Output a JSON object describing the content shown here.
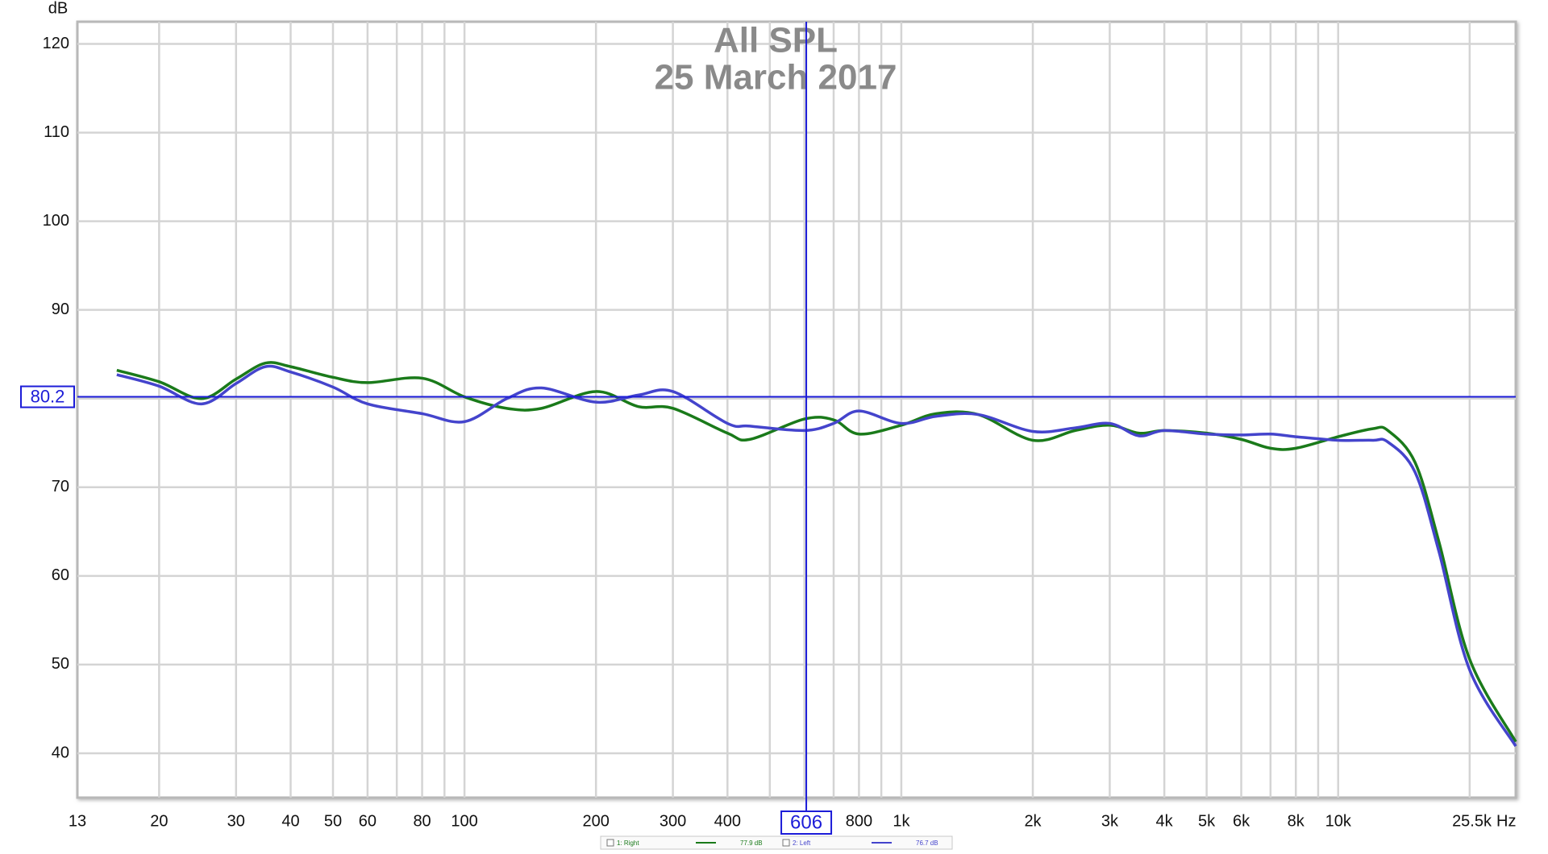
{
  "chart_data": {
    "type": "line",
    "title": "All SPL",
    "subtitle": "25 March 2017",
    "y_label": "dB",
    "x_unit": "Hz",
    "x_scale": "log",
    "xlim": [
      13,
      25500
    ],
    "xticks": [
      13,
      20,
      30,
      40,
      50,
      60,
      80,
      100,
      200,
      300,
      400,
      800,
      {
        "value": 1000,
        "label": "1k"
      },
      {
        "value": 2000,
        "label": "2k"
      },
      {
        "value": 3000,
        "label": "3k"
      },
      {
        "value": 4000,
        "label": "4k"
      },
      {
        "value": 5000,
        "label": "5k"
      },
      {
        "value": 6000,
        "label": "6k"
      },
      {
        "value": 8000,
        "label": "8k"
      },
      {
        "value": 10000,
        "label": "10k"
      },
      {
        "value": 25500,
        "label": "25.5k"
      }
    ],
    "x_minor_grid": [
      70,
      90,
      500,
      600,
      700,
      900,
      7000,
      9000,
      20000
    ],
    "ylim": [
      35,
      122.5
    ],
    "yticks": [
      40,
      50,
      60,
      70,
      80,
      90,
      100,
      110,
      120
    ],
    "grid": true,
    "x": [
      16,
      20,
      25,
      30,
      35,
      40,
      50,
      60,
      80,
      100,
      125,
      150,
      200,
      250,
      300,
      400,
      450,
      600,
      700,
      800,
      1000,
      1200,
      1500,
      2000,
      2500,
      3000,
      3500,
      4000,
      5000,
      6000,
      7000,
      8000,
      10000,
      12000,
      13000,
      15000,
      17000,
      20000,
      25500
    ],
    "series": [
      {
        "name": "1: Right",
        "color": "#1a7a1a",
        "legend_value": "77.9 dB",
        "values": [
          83.2,
          81.9,
          80.0,
          82.2,
          84.0,
          83.6,
          82.4,
          81.8,
          82.3,
          80.2,
          78.9,
          78.9,
          80.8,
          79.1,
          78.9,
          76.1,
          75.4,
          77.7,
          77.6,
          76.0,
          77.0,
          78.3,
          78.2,
          75.3,
          76.4,
          77.0,
          76.1,
          76.4,
          76.1,
          75.4,
          74.4,
          74.4,
          75.7,
          76.6,
          76.4,
          72.8,
          63.9,
          50.6,
          41.3
        ]
      },
      {
        "name": "2: Left",
        "color": "#4444cc",
        "legend_value": "76.7 dB",
        "values": [
          82.7,
          81.4,
          79.4,
          81.7,
          83.6,
          83.0,
          81.3,
          79.4,
          78.3,
          77.4,
          80.0,
          81.2,
          79.6,
          80.4,
          80.8,
          77.2,
          76.9,
          76.4,
          77.2,
          78.6,
          77.2,
          78.0,
          78.2,
          76.3,
          76.7,
          77.2,
          75.8,
          76.4,
          76.0,
          75.9,
          76.0,
          75.7,
          75.3,
          75.3,
          75.1,
          71.7,
          62.8,
          49.4,
          40.8
        ]
      }
    ],
    "cursor": {
      "x": 606,
      "y": 80.2,
      "color": "#1c1cd8"
    }
  }
}
